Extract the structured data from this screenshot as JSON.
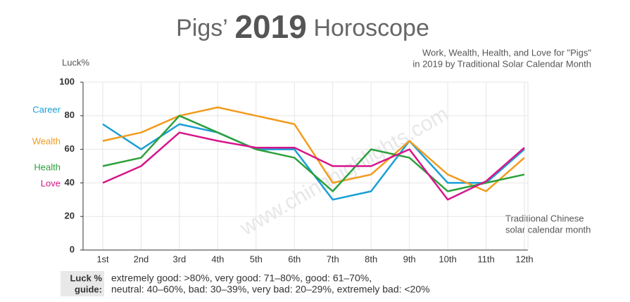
{
  "chart_data": {
    "type": "line",
    "title": "Pigs’",
    "title_year": "2019",
    "title_end": "Horoscope",
    "subtitle": [
      "Work, Wealth, Health, and Love for \"Pigs\"",
      "in 2019 by Traditional Solar Calendar Month"
    ],
    "y_label": "Luck%",
    "x_label": [
      "Traditional Chinese",
      "solar calendar month"
    ],
    "watermark": "www.chinahighlights.com",
    "categories": [
      "1st",
      "2nd",
      "3rd",
      "4th",
      "5th",
      "6th",
      "7th",
      "8th",
      "9th",
      "10th",
      "11th",
      "12th"
    ],
    "series": [
      {
        "name": "Career",
        "color": "#1a9fd6",
        "values": [
          75,
          60,
          75,
          70,
          60,
          60,
          30,
          35,
          65,
          40,
          40,
          60
        ]
      },
      {
        "name": "Wealth",
        "color": "#f29b1d",
        "values": [
          65,
          70,
          80,
          85,
          80,
          75,
          40,
          45,
          65,
          45,
          35,
          55
        ]
      },
      {
        "name": "Health",
        "color": "#2ca03c",
        "values": [
          50,
          55,
          80,
          70,
          60,
          55,
          35,
          60,
          55,
          35,
          40,
          45
        ]
      },
      {
        "name": "Love",
        "color": "#d6168b",
        "values": [
          40,
          50,
          70,
          65,
          61,
          61,
          50,
          50,
          60,
          30,
          41,
          61
        ]
      }
    ],
    "ylim": [
      0,
      100
    ],
    "yticks": [
      0,
      20,
      40,
      60,
      80,
      100
    ],
    "grid": true
  },
  "guide": {
    "label": [
      "Luck %",
      "guide:"
    ],
    "lines": [
      "extremely good: >80%, very good: 71–80%, good: 61–70%,",
      "neutral: 40–60%, bad: 30–39%, very bad: 20–29%, extremely bad: <20%"
    ]
  }
}
